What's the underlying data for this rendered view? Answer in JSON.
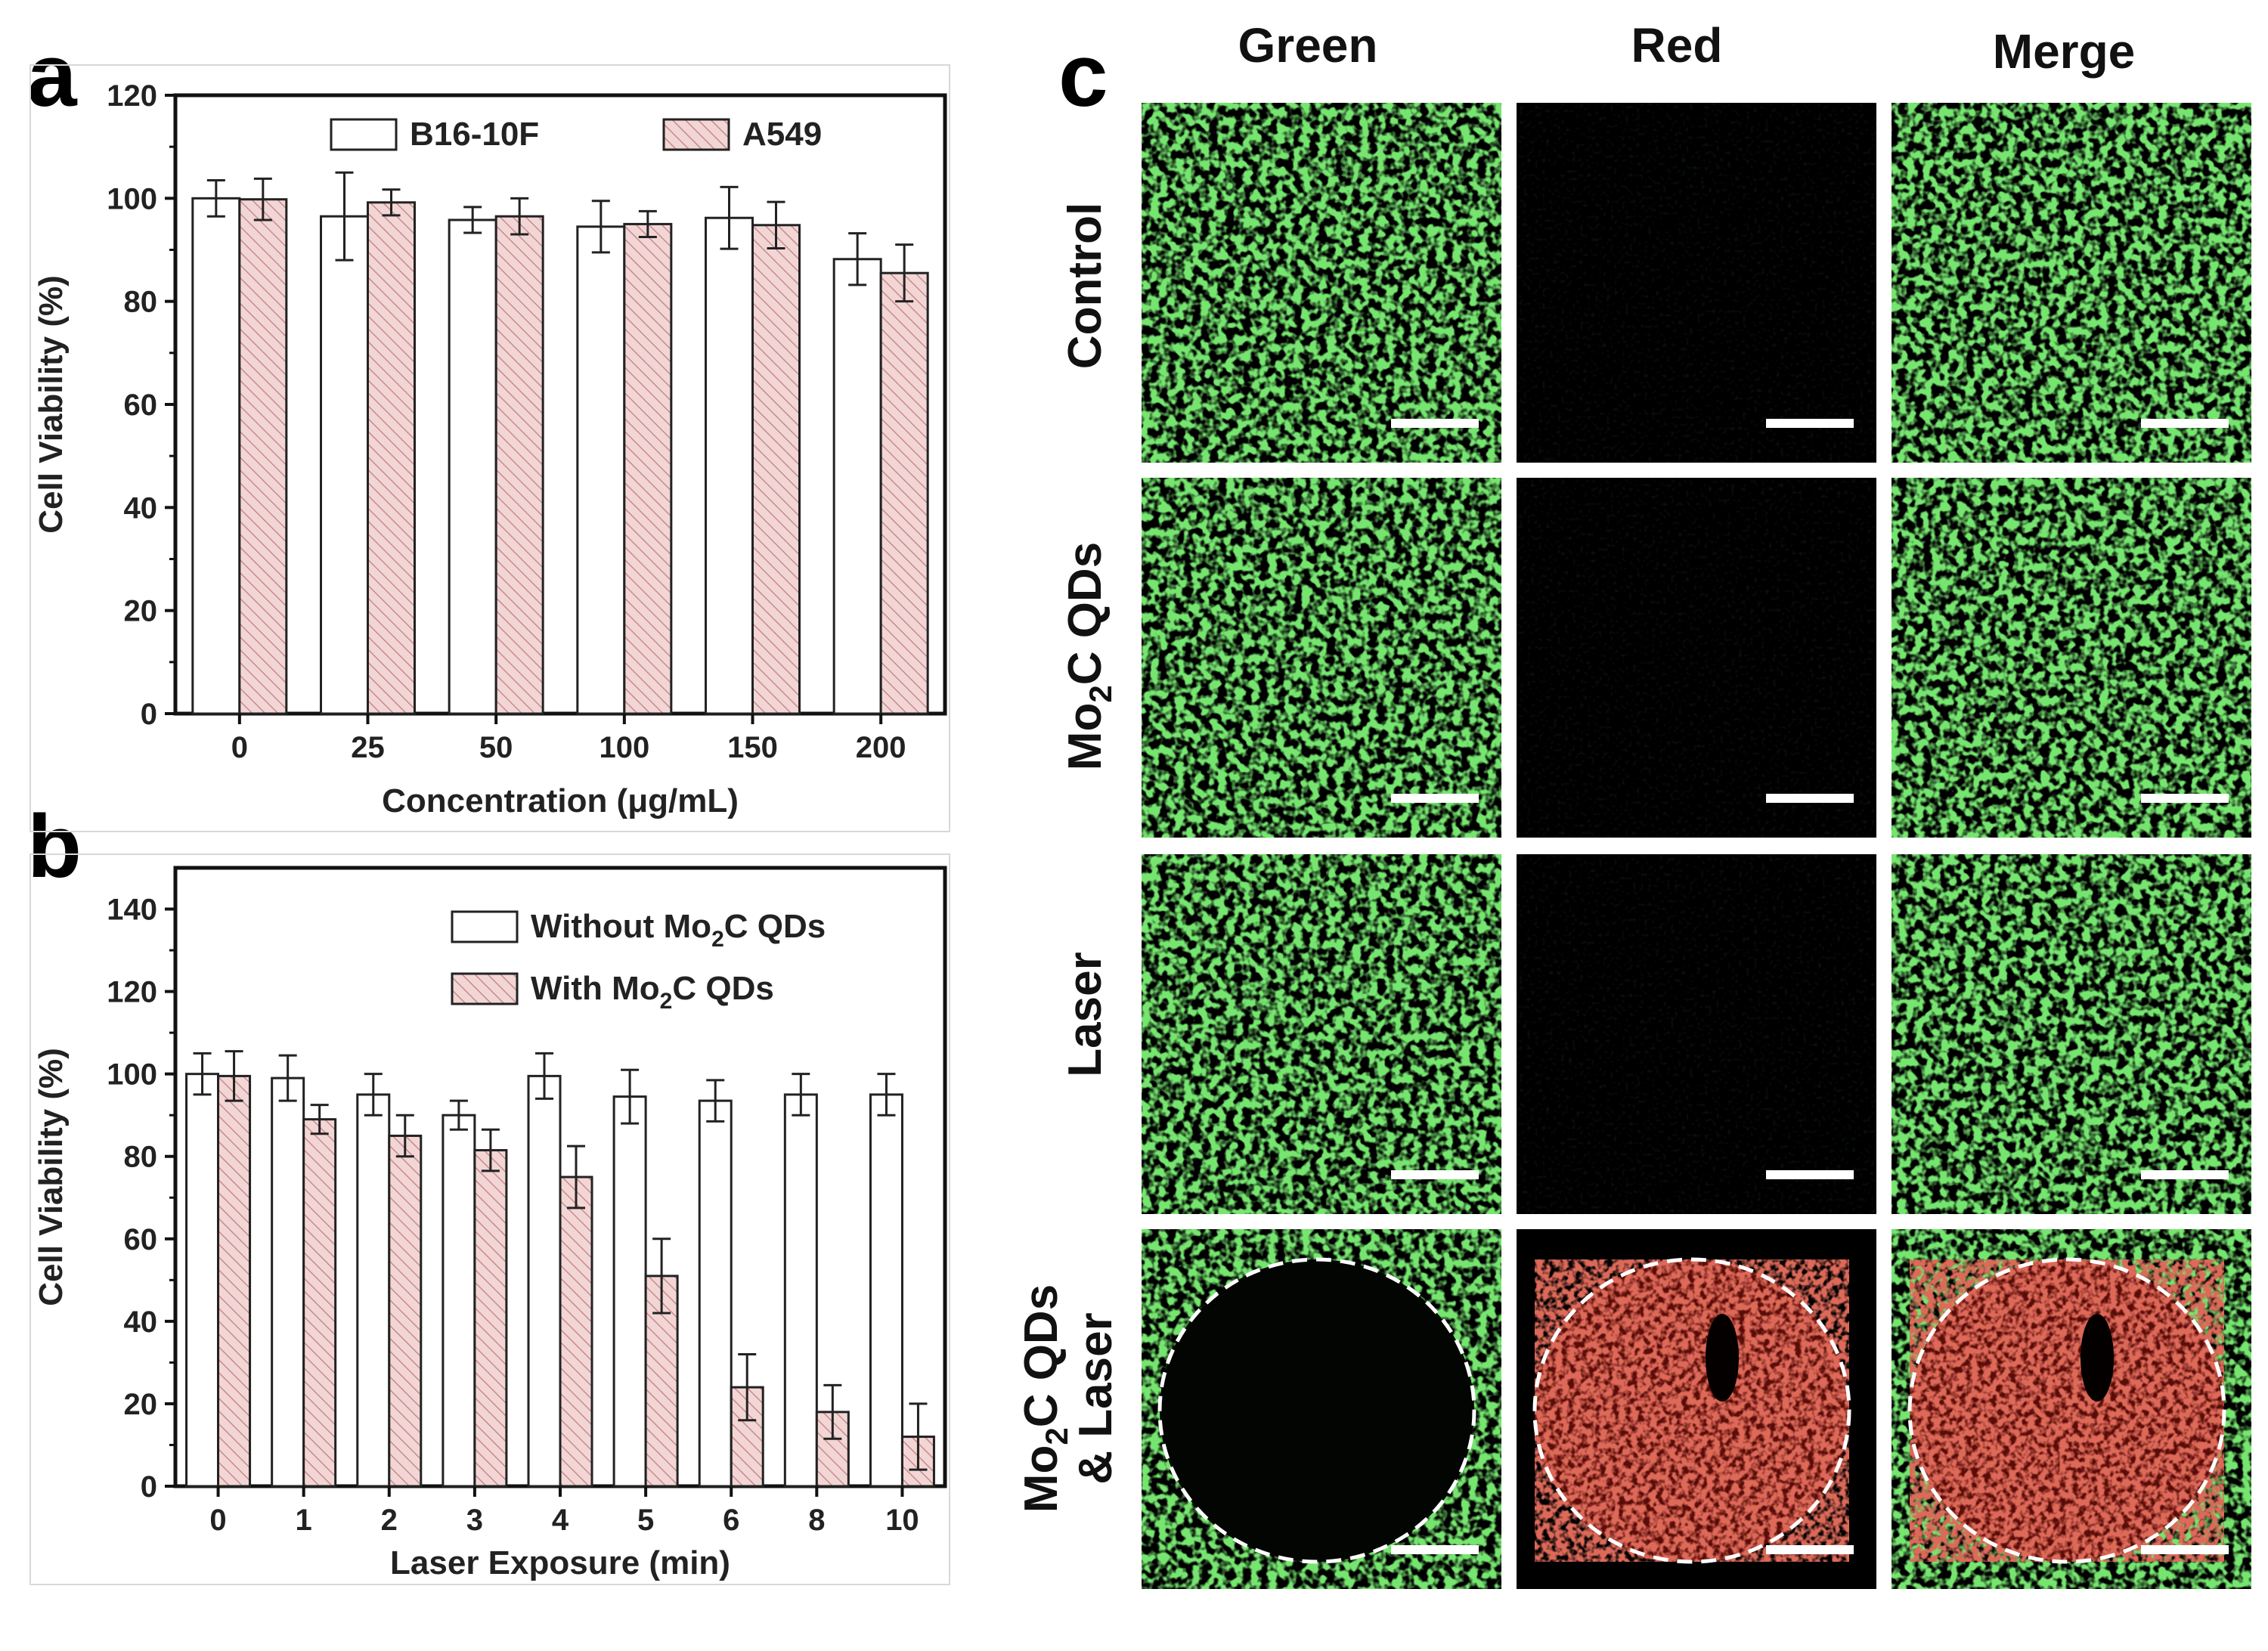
{
  "panels": {
    "a": "a",
    "b": "b",
    "c": "c"
  },
  "colors": {
    "hatch_fill": "#f2d6d6",
    "hatch_line": "#c98a8a",
    "green_cells": "#2fc42f",
    "red_cells": "#b5281e"
  },
  "chart_data": [
    {
      "type": "bar",
      "panel": "a",
      "categories": [
        "0",
        "25",
        "50",
        "100",
        "150",
        "200"
      ],
      "series": [
        {
          "name": "B16-10F",
          "values": [
            100,
            96.5,
            95.8,
            94.5,
            96.2,
            88.2
          ],
          "errors": [
            3.5,
            8.5,
            2.5,
            5,
            6,
            5
          ]
        },
        {
          "name": "A549",
          "values": [
            99.8,
            99.2,
            96.5,
            95,
            94.8,
            85.5
          ],
          "errors": [
            4,
            2.5,
            3.5,
            2.5,
            4.5,
            5.5
          ]
        }
      ],
      "xlabel": "Concentration (μg/mL)",
      "ylabel": "Cell Viability (%)",
      "ylim": [
        0,
        120
      ],
      "yticks": [
        "0",
        "20",
        "40",
        "60",
        "80",
        "100",
        "120"
      ],
      "legend": "top-center"
    },
    {
      "type": "bar",
      "panel": "b",
      "categories": [
        "0",
        "1",
        "2",
        "3",
        "4",
        "5",
        "6",
        "8",
        "10"
      ],
      "series": [
        {
          "name_prefix": "Without Mo",
          "name_sub": "2",
          "name_suffix": "C QDs",
          "values": [
            100,
            99,
            95,
            90,
            99.5,
            94.5,
            93.5,
            95,
            95
          ],
          "errors": [
            5,
            5.5,
            5,
            3.5,
            5.5,
            6.5,
            5,
            5,
            5
          ]
        },
        {
          "name_prefix": "With Mo",
          "name_sub": "2",
          "name_suffix": "C QDs",
          "values": [
            99.5,
            89,
            85,
            81.5,
            75,
            51,
            24,
            18,
            12
          ],
          "errors": [
            6,
            3.5,
            5,
            5,
            7.5,
            9,
            8,
            6.5,
            8
          ]
        }
      ],
      "xlabel": "Laser Exposure (min)",
      "ylabel": "Cell Viability (%)",
      "ylim": [
        0,
        150
      ],
      "yticks": [
        "0",
        "20",
        "40",
        "60",
        "80",
        "100",
        "120",
        "140"
      ],
      "legend": "top-right"
    }
  ],
  "micrographs": {
    "columns": [
      "Green",
      "Red",
      "Merge"
    ],
    "rows": [
      {
        "label": "Control"
      },
      {
        "label_prefix": "Mo",
        "label_sub": "2",
        "label_suffix": "C QDs"
      },
      {
        "label": "Laser"
      },
      {
        "line1_prefix": "Mo",
        "line1_sub": "2",
        "line1_suffix": "C QDs",
        "line2": "& Laser"
      }
    ]
  }
}
